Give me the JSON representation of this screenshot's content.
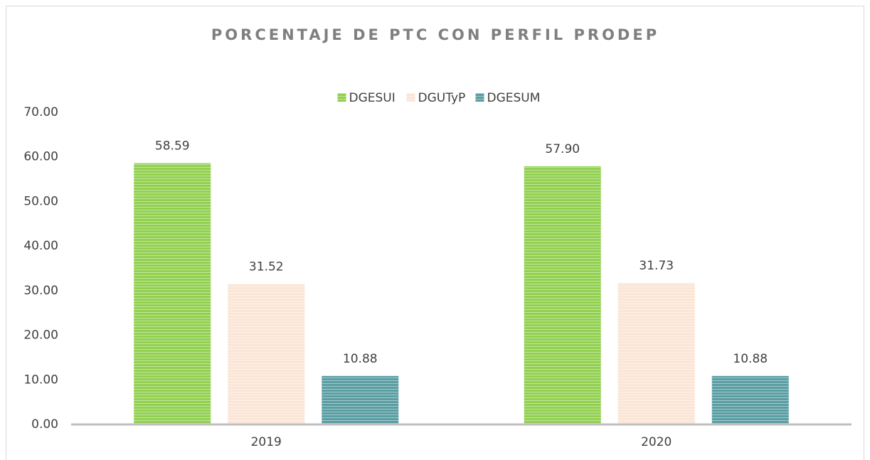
{
  "chart_data": {
    "type": "bar",
    "title": "PORCENTAJE DE PTC CON PERFIL PRODEP",
    "categories": [
      "2019",
      "2020"
    ],
    "series": [
      {
        "name": "DGESUI",
        "color": "#92d050",
        "values": [
          58.59,
          57.9
        ],
        "value_labels": [
          "58.59",
          "57.90"
        ]
      },
      {
        "name": "DGUTyP",
        "color": "#fbe5d6",
        "values": [
          31.52,
          31.73
        ]
      },
      {
        "name": "DGESUM",
        "color": "#5a9ea3",
        "values": [
          10.88,
          10.88
        ]
      }
    ],
    "ylim": [
      0,
      70
    ],
    "yticks": [
      {
        "value": 0,
        "label": "0.00"
      },
      {
        "value": 10,
        "label": "10.00"
      },
      {
        "value": 20,
        "label": "20.00"
      },
      {
        "value": 30,
        "label": "30.00"
      },
      {
        "value": 40,
        "label": "40.00"
      },
      {
        "value": 50,
        "label": "50.00"
      },
      {
        "value": 60,
        "label": "60.00"
      },
      {
        "value": 70,
        "label": "70.00"
      }
    ],
    "grid": false,
    "legend": "top"
  }
}
